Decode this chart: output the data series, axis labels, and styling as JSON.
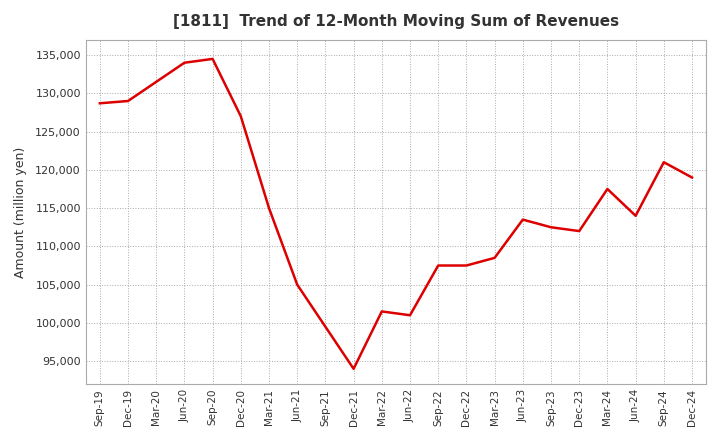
{
  "title": "[1811]  Trend of 12-Month Moving Sum of Revenues",
  "ylabel": "Amount (million yen)",
  "background_color": "#ffffff",
  "grid_color": "#aaaaaa",
  "line_color": "#dd0000",
  "title_color": "#333333",
  "x_labels": [
    "Sep-19",
    "Dec-19",
    "Mar-20",
    "Jun-20",
    "Sep-20",
    "Dec-20",
    "Mar-21",
    "Jun-21",
    "Sep-21",
    "Dec-21",
    "Mar-22",
    "Jun-22",
    "Sep-22",
    "Dec-22",
    "Mar-23",
    "Jun-23",
    "Sep-23",
    "Dec-23",
    "Mar-24",
    "Jun-24",
    "Sep-24",
    "Dec-24"
  ],
  "values": [
    128700,
    129000,
    131500,
    134000,
    134500,
    127000,
    115000,
    105000,
    99500,
    94000,
    101500,
    101000,
    107500,
    107500,
    108500,
    113500,
    112500,
    112000,
    117500,
    114000,
    121000,
    119000
  ],
  "ylim": [
    92000,
    137000
  ],
  "yticks": [
    95000,
    100000,
    105000,
    110000,
    115000,
    120000,
    125000,
    130000,
    135000
  ]
}
